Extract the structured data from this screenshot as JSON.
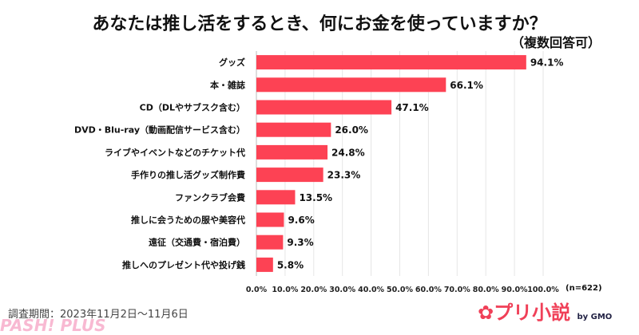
{
  "title": "あなたは推し活をするとき、何にお金を使っていますか？",
  "subtitle": "（複数回答可）",
  "sample": "(n=622)",
  "survey_period": "調査期間：2023年11月2日～11月6日",
  "logo": {
    "text": "プリ小説",
    "by": "by GMO"
  },
  "watermark": "PASH! PLUS",
  "colors": {
    "bar": "#fd4254",
    "grid": "#e6e6e6"
  },
  "chart_data": {
    "type": "bar",
    "orientation": "horizontal",
    "categories": [
      "グッズ",
      "本・雑誌",
      "CD（DLやサブスク含む）",
      "DVD・Blu-ray（動画配信サービス含む）",
      "ライブやイベントなどのチケット代",
      "手作りの推し活グッズ制作費",
      "ファンクラブ会費",
      "推しに会うための服や美容代",
      "遠征（交通費・宿泊費）",
      "推しへのプレゼント代や投げ銭"
    ],
    "values": [
      94.1,
      66.1,
      47.1,
      26.0,
      24.8,
      23.3,
      13.5,
      9.6,
      9.3,
      5.8
    ],
    "data_labels": [
      "94.1%",
      "66.1%",
      "47.1%",
      "26.0%",
      "24.8%",
      "23.3%",
      "13.5%",
      "9.6%",
      "9.3%",
      "5.8%"
    ],
    "xlim": [
      0,
      100
    ],
    "xticks": [
      "0.0%",
      "10.0%",
      "20.0%",
      "30.0%",
      "40.0%",
      "50.0%",
      "60.0%",
      "70.0%",
      "80.0%",
      "90.0%",
      "100.0%"
    ],
    "grid": true
  }
}
